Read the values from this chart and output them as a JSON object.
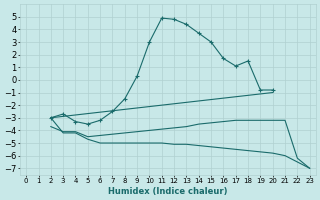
{
  "xlabel": "Humidex (Indice chaleur)",
  "xlim": [
    -0.5,
    23.5
  ],
  "ylim": [
    -7.5,
    6.0
  ],
  "xticks": [
    0,
    1,
    2,
    3,
    4,
    5,
    6,
    7,
    8,
    9,
    10,
    11,
    12,
    13,
    14,
    15,
    16,
    17,
    18,
    19,
    20,
    21,
    22,
    23
  ],
  "yticks": [
    -7,
    -6,
    -5,
    -4,
    -3,
    -2,
    -1,
    0,
    1,
    2,
    3,
    4,
    5
  ],
  "bg_color": "#c8e8e8",
  "line_color": "#1a6b6b",
  "grid_color": "#b0d0d0",
  "curves": [
    {
      "x": [
        2,
        3,
        4,
        5,
        6,
        7,
        8,
        9,
        10,
        11,
        12,
        13,
        14,
        15,
        16,
        17,
        18,
        19,
        20
      ],
      "y": [
        -3,
        -2.7,
        -3.3,
        -3.5,
        -3.2,
        -2.5,
        -1.5,
        0.3,
        3.0,
        4.9,
        4.8,
        4.4,
        3.7,
        3.0,
        1.7,
        1.1,
        1.5,
        -0.8,
        -0.8
      ],
      "marker": true
    },
    {
      "x": [
        2,
        20
      ],
      "y": [
        -3.0,
        -1.0
      ],
      "marker": false
    },
    {
      "x": [
        2,
        3,
        4,
        5,
        6,
        7,
        8,
        9,
        10,
        11,
        12,
        13,
        14,
        15,
        16,
        17,
        18,
        19,
        20,
        21,
        22,
        23
      ],
      "y": [
        -3.7,
        -4.1,
        -4.1,
        -4.5,
        -4.4,
        -4.3,
        -4.2,
        -4.1,
        -4.0,
        -3.9,
        -3.8,
        -3.7,
        -3.5,
        -3.4,
        -3.3,
        -3.2,
        -3.2,
        -3.2,
        -3.2,
        -3.2,
        -6.2,
        -7.0
      ],
      "marker": false
    },
    {
      "x": [
        2,
        3,
        4,
        5,
        6,
        7,
        8,
        9,
        10,
        11,
        12,
        13,
        14,
        15,
        16,
        17,
        18,
        19,
        20,
        21,
        22,
        23
      ],
      "y": [
        -3.0,
        -4.2,
        -4.2,
        -4.7,
        -5.0,
        -5.0,
        -5.0,
        -5.0,
        -5.0,
        -5.0,
        -5.1,
        -5.1,
        -5.2,
        -5.3,
        -5.4,
        -5.5,
        -5.6,
        -5.7,
        -5.8,
        -6.0,
        -6.5,
        -7.0
      ],
      "marker": false
    }
  ]
}
